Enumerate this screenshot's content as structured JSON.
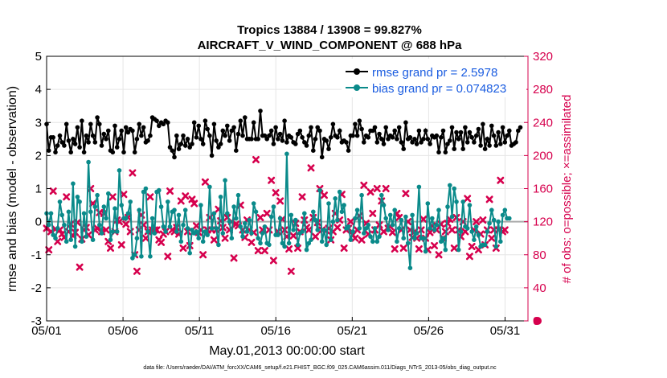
{
  "chart_data": {
    "type": "line",
    "title_line1": "Tropics 13884 / 13908 = 99.827%",
    "title_line2": "AIRCRAFT_V_WIND_COMPONENT @ 688 hPa",
    "xlabel": "May.01,2013 00:00:00 start",
    "ylabel_left": "rmse and bias (model - observation)",
    "ylabel_right": "# of obs: o=possible; ×=assimilated",
    "ylim_left": [
      -3,
      5
    ],
    "ylim_right": [
      0,
      320
    ],
    "xlim_days": [
      0,
      31.5
    ],
    "x_tick_labels": [
      "05/01",
      "05/06",
      "05/11",
      "05/16",
      "05/21",
      "05/26",
      "05/31"
    ],
    "x_tick_days": [
      0,
      5,
      10,
      15,
      20,
      25,
      30
    ],
    "y_left_ticks": [
      "5",
      "4",
      "3",
      "2",
      "1",
      "0",
      "-1",
      "-2",
      "-3"
    ],
    "y_right_ticks": [
      "320",
      "280",
      "240",
      "200",
      "160",
      "120",
      "80",
      "40",
      "0"
    ],
    "legend": [
      {
        "label": "rmse grand pr = 2.5978",
        "color": "#000000"
      },
      {
        "label": "bias grand pr = 0.074823",
        "color": "#008080"
      }
    ],
    "colors": {
      "rmse": "#000000",
      "bias": "#0a8a8a",
      "obs": "#d6004d",
      "zero_line": "#aaaaaa"
    },
    "series": [
      {
        "name": "rmse",
        "values": [
          2.95,
          2.15,
          2.55,
          2.55,
          2.1,
          2.3,
          2.6,
          2.4,
          2.3,
          2.95,
          2.45,
          2.1,
          2.5,
          2.35,
          2.85,
          2.25,
          3.05,
          2.1,
          2.6,
          2.4,
          2.95,
          2.6,
          2.4,
          3.15,
          2.95,
          2.3,
          2.65,
          2.5,
          2.75,
          2.15,
          2.1,
          2.9,
          2.25,
          2.5,
          2.75,
          2.1,
          2.85,
          2.7,
          2.8,
          2.75,
          2.1,
          2.5,
          2.95,
          2.6,
          2.85,
          2.4,
          2.45,
          2.6,
          3.15,
          3.1,
          3.05,
          2.9,
          3.0,
          2.95,
          3.05,
          3.0,
          2.25,
          2.15,
          1.95,
          2.6,
          2.2,
          2.35,
          2.6,
          2.3,
          2.5,
          2.25,
          2.35,
          3.0,
          2.55,
          2.9,
          2.5,
          2.35,
          3.05,
          2.8,
          2.6,
          2.0,
          2.95,
          2.45,
          2.25,
          2.35,
          2.75,
          2.6,
          2.9,
          2.45,
          2.75,
          2.85,
          2.15,
          2.65,
          3.05,
          2.6,
          3.15,
          2.5,
          2.5,
          2.5,
          3.0,
          2.5,
          2.5,
          3.35,
          2.6,
          2.6,
          2.5,
          2.6,
          2.75,
          2.35,
          2.85,
          2.5,
          2.65,
          2.45,
          3.05,
          2.4,
          2.6,
          2.55,
          2.4,
          2.35,
          2.65,
          2.75,
          2.55,
          2.4,
          2.3,
          2.6,
          2.85,
          2.15,
          2.5,
          2.85,
          2.75,
          1.95,
          2.5,
          2.45,
          2.2,
          2.55,
          2.95,
          2.6,
          2.55,
          2.75,
          2.4,
          2.45,
          2.4,
          2.15,
          2.6,
          2.6,
          2.95,
          2.6,
          3.05,
          2.8,
          2.4,
          2.6,
          2.55,
          2.75,
          2.75,
          2.85,
          2.4,
          2.65,
          2.5,
          2.35,
          2.85,
          2.5,
          2.6,
          2.55,
          2.75,
          2.5,
          2.85,
          2.4,
          2.2,
          3.0,
          2.5,
          2.55,
          2.4,
          2.5,
          2.35,
          2.75,
          2.4,
          2.5,
          2.75,
          2.5,
          2.35,
          2.6,
          2.55,
          2.6,
          2.1,
          2.55,
          2.75,
          2.1,
          2.35,
          2.45,
          2.85,
          2.2,
          2.7,
          2.5,
          2.7,
          2.2,
          2.85,
          2.4,
          2.7,
          2.55,
          2.4,
          2.6,
          2.8,
          2.3,
          2.95,
          2.2,
          2.5,
          2.3,
          2.9,
          2.6,
          2.3,
          2.7,
          2.35,
          2.85,
          2.4,
          2.6,
          2.75,
          2.3,
          2.35,
          2.4,
          2.75,
          2.85
        ]
      },
      {
        "name": "bias",
        "values": [
          0.25,
          -0.1,
          0.25,
          -0.4,
          -0.5,
          -0.2,
          0.6,
          0.2,
          -0.1,
          -0.6,
          0.3,
          -0.55,
          1.15,
          -0.75,
          0.75,
          0.6,
          -0.6,
          0.25,
          -0.45,
          1.8,
          0.3,
          -0.55,
          0.45,
          0.8,
          -0.1,
          -0.35,
          0.45,
          0.1,
          0.85,
          -0.55,
          -0.3,
          0.4,
          -0.3,
          1.55,
          0.5,
          0.1,
          0.1,
          0.25,
          0.6,
          -1.1,
          -1.0,
          -0.5,
          0.35,
          -1.05,
          0.9,
          1.0,
          -0.3,
          -1.05,
          0.1,
          -0.35,
          0.9,
          0.95,
          0.45,
          -0.15,
          -0.3,
          0.6,
          -0.15,
          0.3,
          0.35,
          -0.3,
          0.2,
          -0.6,
          -0.1,
          0.35,
          -0.2,
          -0.95,
          -0.25,
          -0.35,
          -0.3,
          -0.5,
          0.5,
          -0.6,
          -0.3,
          -0.4,
          1.05,
          -0.2,
          0.25,
          -0.2,
          -0.7,
          0.75,
          -0.35,
          1.25,
          0.25,
          0.0,
          -0.5,
          0.45,
          0.1,
          0.8,
          -0.15,
          -0.45,
          -0.05,
          -0.3,
          0.05,
          -0.35,
          0.55,
          0.3,
          -0.5,
          -0.65,
          -0.35,
          -0.15,
          -0.65,
          -0.7,
          0.15,
          0.45,
          -0.4,
          -0.4,
          0.1,
          -0.65,
          -0.75,
          2.05,
          -0.65,
          0.2,
          -0.25,
          0.05,
          -0.7,
          -0.35,
          -0.3,
          0.25,
          -0.85,
          -0.65,
          -0.55,
          0.3,
          0.05,
          -0.25,
          0.95,
          -0.6,
          -0.25,
          -0.7,
          0.55,
          -0.55,
          0.0,
          0.7,
          0.05,
          0.9,
          0.3,
          0.5,
          -0.2,
          -0.15,
          -0.55,
          -0.3,
          0.1,
          0.35,
          -0.2,
          0.8,
          -0.35,
          -0.2,
          -0.1,
          -0.45,
          -0.6,
          -0.2,
          -0.6,
          -0.45,
          0.8,
          0.5,
          0.1,
          -0.25,
          0.2,
          -0.1,
          0.35,
          -0.6,
          -0.2,
          0.05,
          -0.5,
          0.15,
          -0.65,
          -1.4,
          0.2,
          -0.5,
          -0.35,
          1.05,
          -0.5,
          -0.5,
          -0.9,
          0.55,
          -0.2,
          0.1,
          -0.25,
          -0.1,
          0.35,
          -0.6,
          -0.5,
          -0.85,
          0.45,
          1.1,
          0.15,
          1.0,
          0.6,
          -0.85,
          -0.3,
          0.6,
          -0.15,
          -0.2,
          0.5,
          -0.3,
          -0.55,
          -0.15,
          -0.4,
          -0.75,
          -0.7,
          -0.7,
          -0.3,
          -0.05,
          0.35,
          0.05,
          -0.75,
          0.0,
          -0.6,
          0.2,
          0.35,
          0.1,
          0.1
        ]
      },
      {
        "name": "obs_possible",
        "values": [
          112,
          86,
          108,
          157,
          111,
          96,
          110,
          105,
          101,
          150,
          108,
          117,
          103,
          107,
          119,
          65,
          99,
          110,
          113,
          104,
          160,
          142,
          110,
          112,
          131,
          108,
          130,
          110,
          96,
          88,
          150,
          108,
          122,
          120,
          92,
          153,
          117,
          125,
          108,
          179,
          80,
          60,
          110,
          128,
          116,
          100,
          108,
          150,
          110,
          110,
          110,
          98,
          95,
          105,
          108,
          78,
          157,
          110,
          108,
          113,
          105,
          145,
          88,
          151,
          108,
          91,
          147,
          142,
          115,
          107,
          110,
          80,
          168,
          110,
          125,
          110,
          98,
          110,
          135,
          121,
          113,
          100,
          125,
          110,
          120,
          76,
          117,
          115,
          140,
          110,
          101,
          122,
          110,
          95,
          107,
          195,
          85,
          125,
          110,
          85,
          130,
          110,
          170,
          73,
          155,
          108,
          145,
          123,
          110,
          102,
          87,
          60,
          103,
          118,
          88,
          108,
          150,
          122,
          113,
          110,
          185,
          125,
          102,
          119,
          160,
          110,
          152,
          109,
          112,
          98,
          108,
          130,
          113,
          122,
          153,
          88,
          110,
          112,
          120,
          104,
          100,
          110,
          127,
          98,
          164,
          118,
          105,
          156,
          130,
          110,
          160,
          116,
          145,
          108,
          160,
          112,
          114,
          107,
          87,
          130,
          125,
          110,
          88,
          154,
          120,
          110,
          101,
          108,
          100,
          87,
          110,
          123,
          100,
          86,
          107,
          115,
          91,
          110,
          80,
          117,
          100,
          108,
          118,
          123,
          110,
          88,
          125,
          110,
          102,
          120,
          108,
          148,
          78,
          90,
          110,
          120,
          86,
          105,
          122,
          92,
          110,
          147,
          100,
          110,
          88,
          110,
          170,
          108,
          110
        ]
      }
    ],
    "footer": "data file: /Users/raeder/DAI/ATM_forcXX/CAM6_setup/f.e21.FHIST_BGC.f09_025.CAM6assim.011/Diags_NTrS_2013-05/obs_diag_output.nc"
  }
}
